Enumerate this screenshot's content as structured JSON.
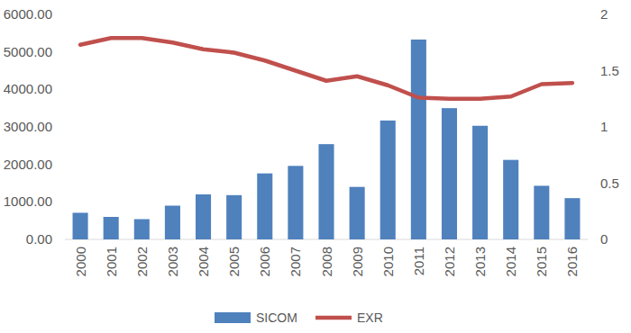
{
  "chart_data": {
    "type": "bar",
    "categories": [
      "2000",
      "2001",
      "2002",
      "2003",
      "2004",
      "2005",
      "2006",
      "2007",
      "2008",
      "2009",
      "2010",
      "2011",
      "2012",
      "2013",
      "2014",
      "2015",
      "2016"
    ],
    "series": [
      {
        "name": "SICOM",
        "type": "bar",
        "color": "#4f81bd",
        "values": [
          710,
          600,
          540,
          900,
          1200,
          1180,
          1760,
          1960,
          2540,
          1400,
          3170,
          5330,
          3500,
          3030,
          2120,
          1430,
          1100
        ]
      },
      {
        "name": "EXR",
        "type": "line",
        "axis": "y2",
        "color": "#c0504d",
        "values": [
          1.73,
          1.79,
          1.79,
          1.75,
          1.69,
          1.66,
          1.59,
          1.5,
          1.41,
          1.45,
          1.37,
          1.26,
          1.25,
          1.25,
          1.27,
          1.38,
          1.39
        ]
      }
    ],
    "ylim": [
      0,
      6000
    ],
    "yticks": [
      {
        "value": 0,
        "label": "0.00"
      },
      {
        "value": 1000,
        "label": "1000.00"
      },
      {
        "value": 2000,
        "label": "2000.00"
      },
      {
        "value": 3000,
        "label": "3000.00"
      },
      {
        "value": 4000,
        "label": "4000.00"
      },
      {
        "value": 5000,
        "label": "5000.00"
      },
      {
        "value": 6000,
        "label": "6000.00"
      }
    ],
    "y2lim": [
      0,
      2
    ],
    "y2ticks": [
      0,
      0.5,
      1,
      1.5,
      2
    ],
    "grid": false,
    "legend": "bottom"
  }
}
